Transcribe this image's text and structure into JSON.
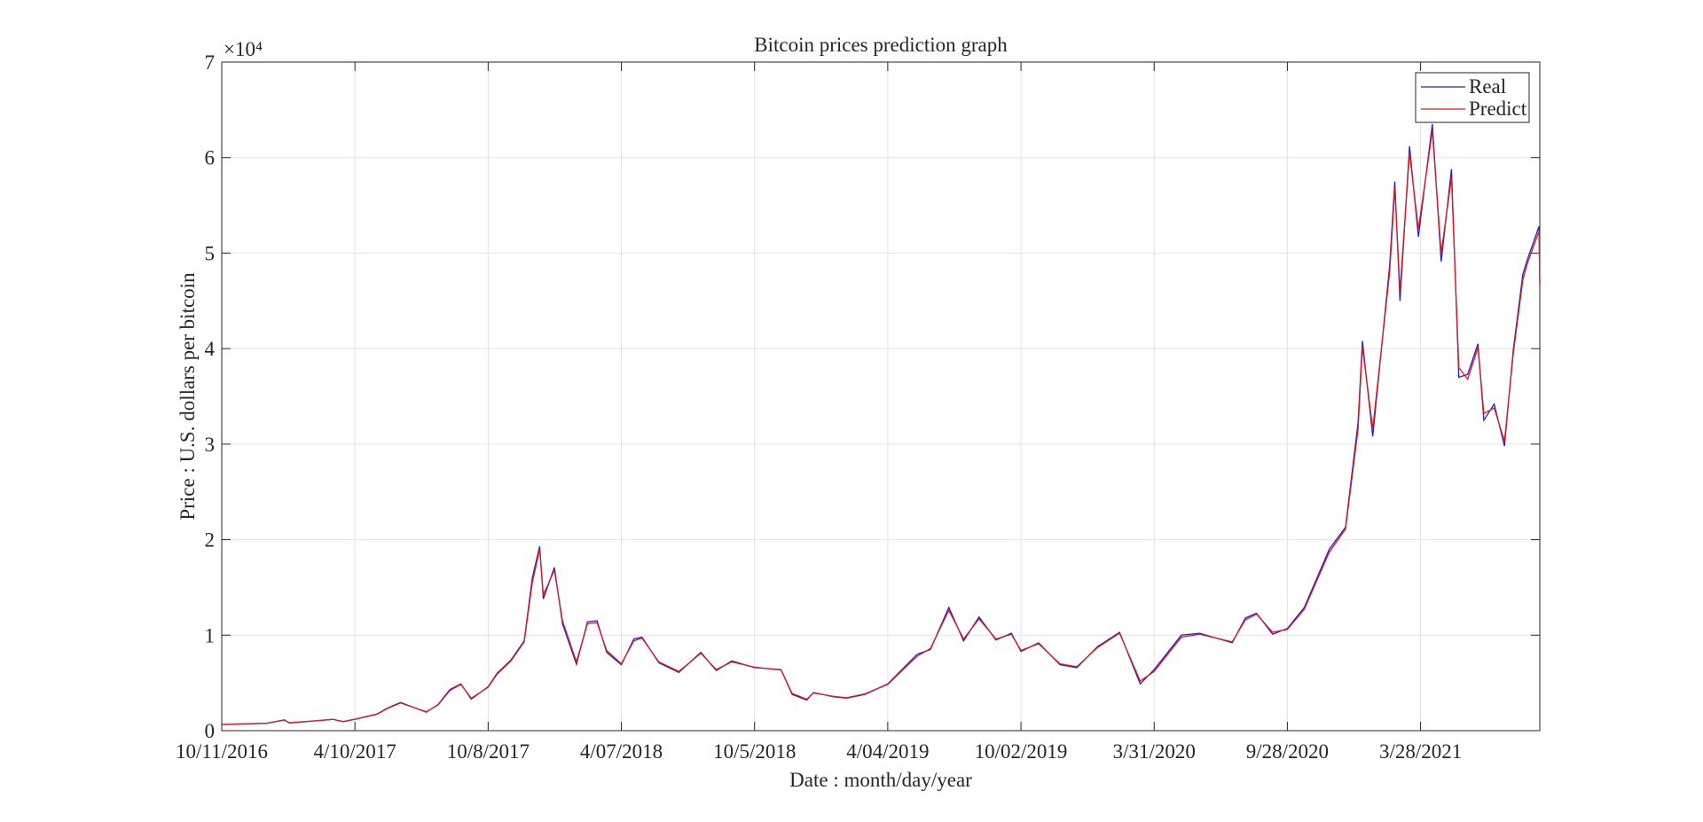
{
  "chart_data": {
    "type": "line",
    "title": "Bitcoin prices prediction graph",
    "x_label": "Date : month/day/year",
    "y_label": "Price : U.S. dollars per bitcoin",
    "y_exponent_label": "×10⁴",
    "x": [
      "2016-10-11",
      "2016-11-11",
      "2016-12-11",
      "2017-01-04",
      "2017-01-11",
      "2017-02-11",
      "2017-03-11",
      "2017-03-25",
      "2017-04-10",
      "2017-05-10",
      "2017-05-25",
      "2017-06-11",
      "2017-07-16",
      "2017-08-01",
      "2017-08-17",
      "2017-09-01",
      "2017-09-15",
      "2017-10-08",
      "2017-10-20",
      "2017-11-08",
      "2017-11-26",
      "2017-12-07",
      "2017-12-17",
      "2017-12-22",
      "2018-01-06",
      "2018-01-17",
      "2018-02-05",
      "2018-02-20",
      "2018-03-05",
      "2018-03-18",
      "2018-04-07",
      "2018-04-24",
      "2018-05-05",
      "2018-05-28",
      "2018-06-24",
      "2018-07-24",
      "2018-08-14",
      "2018-09-04",
      "2018-10-05",
      "2018-11-10",
      "2018-11-25",
      "2018-12-15",
      "2018-12-24",
      "2019-01-20",
      "2019-02-07",
      "2019-03-04",
      "2019-04-04",
      "2019-05-14",
      "2019-06-01",
      "2019-06-26",
      "2019-07-16",
      "2019-08-06",
      "2019-08-29",
      "2019-09-19",
      "2019-10-02",
      "2019-10-26",
      "2019-11-24",
      "2019-12-17",
      "2020-01-14",
      "2020-02-13",
      "2020-03-12",
      "2020-03-31",
      "2020-05-07",
      "2020-06-01",
      "2020-07-15",
      "2020-08-02",
      "2020-08-17",
      "2020-09-08",
      "2020-09-28",
      "2020-10-21",
      "2020-11-24",
      "2020-12-16",
      "2021-01-02",
      "2021-01-08",
      "2021-01-22",
      "2021-02-14",
      "2021-02-21",
      "2021-02-28",
      "2021-03-13",
      "2021-03-25",
      "2021-04-13",
      "2021-04-25",
      "2021-05-09",
      "2021-05-19",
      "2021-05-31",
      "2021-06-14",
      "2021-06-22",
      "2021-07-06",
      "2021-07-20",
      "2021-08-01",
      "2021-08-14",
      "2021-08-20",
      "2021-09-05",
      "2021-09-06"
    ],
    "series": [
      {
        "name": "Real",
        "color": "#2020c8",
        "values": [
          640,
          715,
          770,
          1130,
          800,
          1000,
          1190,
          940,
          1200,
          1750,
          2400,
          2950,
          1930,
          2750,
          4300,
          4900,
          3300,
          4600,
          6000,
          7400,
          9400,
          16000,
          19300,
          13800,
          17100,
          11200,
          6950,
          11400,
          11500,
          8200,
          6900,
          9600,
          9800,
          7100,
          6100,
          8200,
          6300,
          7300,
          6600,
          6400,
          3800,
          3200,
          4000,
          3550,
          3400,
          3800,
          4900,
          8000,
          8500,
          12900,
          9400,
          11900,
          9500,
          10200,
          8300,
          9200,
          6900,
          6600,
          8800,
          10300,
          4900,
          6400,
          10000,
          10200,
          9200,
          11800,
          12300,
          10100,
          10700,
          12900,
          19000,
          21300,
          32200,
          40800,
          30800,
          48700,
          57500,
          45000,
          61200,
          51700,
          63500,
          49100,
          58800,
          37000,
          37300,
          40500,
          32500,
          34200,
          29800,
          39900,
          47800,
          49300,
          52800,
          46800
        ]
      },
      {
        "name": "Predict",
        "color": "#e8141e",
        "values": [
          650,
          720,
          780,
          1100,
          830,
          1010,
          1180,
          960,
          1190,
          1720,
          2350,
          2900,
          1980,
          2700,
          4200,
          4850,
          3400,
          4550,
          5900,
          7300,
          9300,
          15500,
          19000,
          14200,
          16800,
          11500,
          7200,
          11200,
          11300,
          8400,
          7000,
          9400,
          9700,
          7200,
          6200,
          8100,
          6400,
          7200,
          6650,
          6350,
          3900,
          3300,
          3950,
          3600,
          3450,
          3850,
          4850,
          7800,
          8600,
          12600,
          9600,
          11700,
          9600,
          10100,
          8400,
          9100,
          7000,
          6700,
          8700,
          10200,
          5200,
          6200,
          9800,
          10100,
          9300,
          11600,
          12200,
          10300,
          10600,
          12700,
          18700,
          21100,
          31500,
          40200,
          31600,
          48000,
          56800,
          46000,
          60500,
          52500,
          62800,
          50000,
          57900,
          38000,
          36800,
          40100,
          33200,
          33800,
          30300,
          39500,
          47200,
          48900,
          52300,
          46400
        ]
      }
    ],
    "xlim": [
      "2016-10-11",
      "2021-09-06"
    ],
    "xticks": [
      {
        "value": "2016-10-11",
        "label": "10/11/2016"
      },
      {
        "value": "2017-04-10",
        "label": "4/10/2017"
      },
      {
        "value": "2017-10-08",
        "label": "10/8/2017"
      },
      {
        "value": "2018-04-07",
        "label": "4/07/2018"
      },
      {
        "value": "2018-10-05",
        "label": "10/5/2018"
      },
      {
        "value": "2019-04-04",
        "label": "4/04/2019"
      },
      {
        "value": "2019-10-02",
        "label": "10/02/2019"
      },
      {
        "value": "2020-03-31",
        "label": "3/31/2020"
      },
      {
        "value": "2020-09-28",
        "label": "9/28/2020"
      },
      {
        "value": "2021-03-28",
        "label": "3/28/2021"
      }
    ],
    "ylim": [
      0,
      70000
    ],
    "yticks": [
      {
        "value": 0,
        "label": "0"
      },
      {
        "value": 10000,
        "label": "1"
      },
      {
        "value": 20000,
        "label": "2"
      },
      {
        "value": 30000,
        "label": "3"
      },
      {
        "value": 40000,
        "label": "4"
      },
      {
        "value": 50000,
        "label": "5"
      },
      {
        "value": 60000,
        "label": "6"
      },
      {
        "value": 70000,
        "label": "7"
      }
    ],
    "grid": true,
    "legend": "northeast"
  }
}
